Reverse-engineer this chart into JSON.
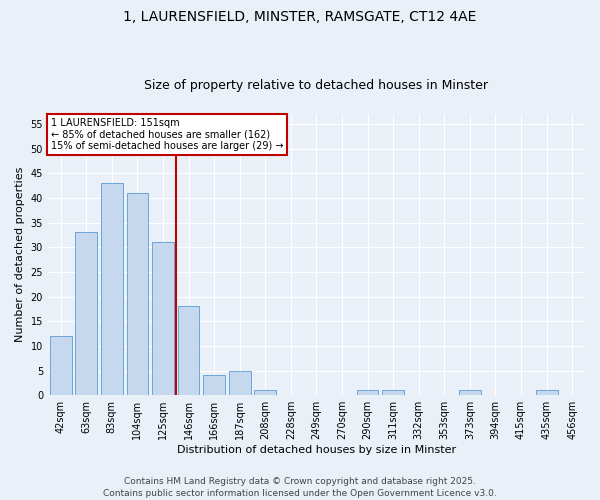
{
  "title_line1": "1, LAURENSFIELD, MINSTER, RAMSGATE, CT12 4AE",
  "title_line2": "Size of property relative to detached houses in Minster",
  "xlabel": "Distribution of detached houses by size in Minster",
  "ylabel": "Number of detached properties",
  "categories": [
    "42sqm",
    "63sqm",
    "83sqm",
    "104sqm",
    "125sqm",
    "146sqm",
    "166sqm",
    "187sqm",
    "208sqm",
    "228sqm",
    "249sqm",
    "270sqm",
    "290sqm",
    "311sqm",
    "332sqm",
    "353sqm",
    "373sqm",
    "394sqm",
    "415sqm",
    "435sqm",
    "456sqm"
  ],
  "values": [
    12,
    33,
    43,
    41,
    31,
    18,
    4,
    5,
    1,
    0,
    0,
    0,
    1,
    1,
    0,
    0,
    1,
    0,
    0,
    1,
    0
  ],
  "bar_color": "#c5d8ed",
  "bar_edge_color": "#5b9bd5",
  "highlight_color": "#c00000",
  "vline_x_index": 5,
  "ylim": [
    0,
    57
  ],
  "yticks": [
    0,
    5,
    10,
    15,
    20,
    25,
    30,
    35,
    40,
    45,
    50,
    55
  ],
  "annotation_text": "1 LAURENSFIELD: 151sqm\n← 85% of detached houses are smaller (162)\n15% of semi-detached houses are larger (29) →",
  "annotation_box_color": "#ffffff",
  "annotation_box_edge": "#c00000",
  "footer_line1": "Contains HM Land Registry data © Crown copyright and database right 2025.",
  "footer_line2": "Contains public sector information licensed under the Open Government Licence v3.0.",
  "bg_color": "#eaf0f8",
  "plot_bg_color": "#eaf0f8",
  "grid_color": "#ffffff",
  "title_fontsize": 10,
  "subtitle_fontsize": 9,
  "axis_label_fontsize": 8,
  "tick_fontsize": 7,
  "annotation_fontsize": 7,
  "footer_fontsize": 6.5
}
